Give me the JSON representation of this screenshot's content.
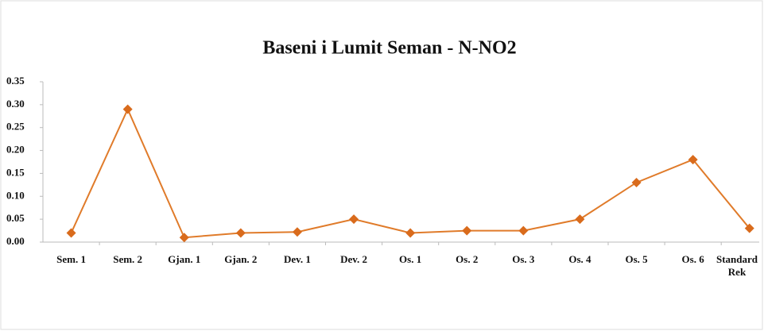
{
  "chart_data": {
    "type": "line",
    "title": "Baseni i Lumit Seman - N-NO2",
    "categories": [
      "Sem. 1",
      "Sem. 2",
      "Gjan. 1",
      "Gjan. 2",
      "Dev. 1",
      "Dev. 2",
      "Os. 1",
      "Os. 2",
      "Os. 3",
      "Os. 4",
      "Os. 5",
      "Os. 6",
      "Standard Rek"
    ],
    "values": [
      0.02,
      0.29,
      0.01,
      0.02,
      0.022,
      0.05,
      0.02,
      0.025,
      0.025,
      0.05,
      0.13,
      0.18,
      0.03
    ],
    "color": "#e07b2a",
    "ylim": [
      0,
      0.35
    ],
    "yticks": [
      {
        "value": 0,
        "label": "0.00"
      },
      {
        "value": 0.05,
        "label": "0.05"
      },
      {
        "value": 0.1,
        "label": "0.10"
      },
      {
        "value": 0.15,
        "label": "0.15"
      },
      {
        "value": 0.2,
        "label": "0.20"
      },
      {
        "value": 0.25,
        "label": "0.25"
      },
      {
        "value": 0.3,
        "label": "0.30"
      },
      {
        "value": 0.35,
        "label": "0.35"
      }
    ],
    "grid": false
  }
}
